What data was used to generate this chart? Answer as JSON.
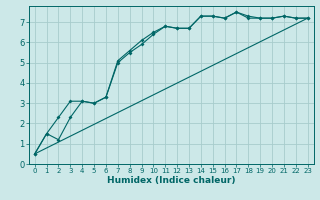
{
  "xlabel": "Humidex (Indice chaleur)",
  "bg_color": "#cce8e8",
  "grid_color": "#a8cccc",
  "line_color": "#006666",
  "spine_color": "#006666",
  "xlim": [
    -0.5,
    23.5
  ],
  "ylim": [
    0,
    7.8
  ],
  "xticks": [
    0,
    1,
    2,
    3,
    4,
    5,
    6,
    7,
    8,
    9,
    10,
    11,
    12,
    13,
    14,
    15,
    16,
    17,
    18,
    19,
    20,
    21,
    22,
    23
  ],
  "yticks": [
    0,
    1,
    2,
    3,
    4,
    5,
    6,
    7
  ],
  "series1": {
    "x": [
      0,
      1,
      2,
      3,
      4,
      5,
      6,
      7,
      8,
      9,
      10,
      11,
      12,
      13,
      14,
      15,
      16,
      17,
      18,
      19,
      20,
      21,
      22,
      23
    ],
    "y": [
      0.5,
      1.5,
      1.2,
      2.3,
      3.1,
      3.0,
      3.3,
      5.1,
      5.6,
      6.1,
      6.5,
      6.8,
      6.7,
      6.7,
      7.3,
      7.3,
      7.2,
      7.5,
      7.3,
      7.2,
      7.2,
      7.3,
      7.2,
      7.2
    ]
  },
  "series2": {
    "x": [
      0,
      1,
      2,
      3,
      4,
      5,
      6,
      7,
      8,
      9,
      10,
      11,
      12,
      13,
      14,
      15,
      16,
      17,
      18,
      19,
      20,
      21,
      22,
      23
    ],
    "y": [
      0.5,
      1.5,
      2.3,
      3.1,
      3.1,
      3.0,
      3.3,
      5.0,
      5.5,
      5.9,
      6.4,
      6.8,
      6.7,
      6.7,
      7.3,
      7.3,
      7.2,
      7.5,
      7.2,
      7.2,
      7.2,
      7.3,
      7.2,
      7.2
    ]
  },
  "series3": {
    "x": [
      0,
      23
    ],
    "y": [
      0.5,
      7.2
    ]
  },
  "xlabel_fontsize": 6.5,
  "tick_fontsize_x": 5.0,
  "tick_fontsize_y": 6.0
}
